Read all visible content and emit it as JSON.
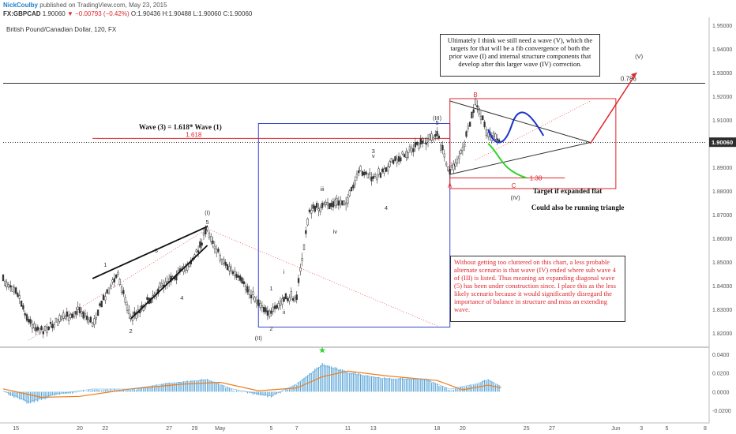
{
  "header": {
    "author": "NickCoulby",
    "published": "published on TradingView.com, May 23, 2015",
    "symbol": "FX:GBPCAD",
    "last": "1.90060",
    "change": "−0.00793 (−0.42%)",
    "ohlc": {
      "o": "O:1.90436",
      "h": "H:1.90488",
      "l": "L:1.90060",
      "c": "C:1.90060"
    }
  },
  "colors": {
    "up": "#333333",
    "down": "#333333",
    "accent": "#1e7fcb",
    "red": "#e0252b",
    "macd_hist": "#5aa5d8",
    "macd_signal": "#f07d1a",
    "macd_line": "#5aa5d8",
    "blue_box": "#3a45d6",
    "price_box_bg": "#2d2d2d",
    "projection_blue": "#1d36c9",
    "projection_green": "#2fd42f"
  },
  "chart_data": [
    {
      "type": "candlestick",
      "title": "British Pound/Canadian Dollar, 120, FX",
      "ylim": [
        1.815,
        1.952
      ],
      "yticks": [
        "1.95000",
        "1.94000",
        "1.93000",
        "1.92000",
        "1.91000",
        "1.90000",
        "1.89000",
        "1.88000",
        "1.87000",
        "1.86000",
        "1.85000",
        "1.84000",
        "1.83000",
        "1.82000"
      ],
      "xticks": [
        "15",
        "20",
        "22",
        "27",
        "29",
        "May",
        "5",
        "7",
        "11",
        "13",
        "18",
        "20",
        "25",
        "27",
        "Jun",
        "3",
        "5",
        "8"
      ],
      "xlim": [
        "2015-04-14",
        "2015-06-08"
      ],
      "last_price_label": "1.90060",
      "path": [
        [
          "2015-04-14",
          1.842
        ],
        [
          "2015-04-15",
          1.839
        ],
        [
          "2015-04-16",
          1.825
        ],
        [
          "2015-04-17",
          1.821
        ],
        [
          "2015-04-20",
          1.83
        ],
        [
          "2015-04-21",
          1.824
        ],
        [
          "2015-04-22",
          1.836
        ],
        [
          "2015-04-23",
          1.845
        ],
        [
          "2015-04-24",
          1.826
        ],
        [
          "2015-04-27",
          1.843
        ],
        [
          "2015-04-28",
          1.846
        ],
        [
          "2015-04-29",
          1.852
        ],
        [
          "2015-04-30",
          1.864
        ],
        [
          "2015-05-01",
          1.852
        ],
        [
          "2015-05-04",
          1.833
        ],
        [
          "2015-05-05",
          1.828
        ],
        [
          "2015-05-06",
          1.834
        ],
        [
          "2015-05-07",
          1.836
        ],
        [
          "2015-05-08",
          1.872
        ],
        [
          "2015-05-11",
          1.876
        ],
        [
          "2015-05-12",
          1.889
        ],
        [
          "2015-05-13",
          1.885
        ],
        [
          "2015-05-14",
          1.89
        ],
        [
          "2015-05-15",
          1.894
        ],
        [
          "2015-05-18",
          1.904
        ],
        [
          "2015-05-19",
          1.888
        ],
        [
          "2015-05-20",
          1.897
        ],
        [
          "2015-05-21",
          1.917
        ],
        [
          "2015-05-22",
          1.904
        ],
        [
          "2015-05-23",
          1.9006
        ]
      ],
      "wave_labels": [
        {
          "text": "1",
          "date": "2015-04-22",
          "y": 1.848
        },
        {
          "text": "3",
          "date": "2015-04-26",
          "y": 1.854
        },
        {
          "text": "2",
          "date": "2015-04-24",
          "y": 1.82
        },
        {
          "text": "4",
          "date": "2015-04-28",
          "y": 1.834
        },
        {
          "text": "(I)",
          "date": "2015-04-30",
          "y": 1.87
        },
        {
          "text": "5",
          "date": "2015-04-30",
          "y": 1.866
        },
        {
          "text": "(II)",
          "date": "2015-05-04",
          "y": 1.817
        },
        {
          "text": "1",
          "date": "2015-05-05",
          "y": 1.838
        },
        {
          "text": "i",
          "date": "2015-05-06",
          "y": 1.845
        },
        {
          "text": "ii",
          "date": "2015-05-06",
          "y": 1.828
        },
        {
          "text": "2",
          "date": "2015-05-05",
          "y": 1.821
        },
        {
          "text": "iii",
          "date": "2015-05-09",
          "y": 1.88
        },
        {
          "text": "iv",
          "date": "2015-05-10",
          "y": 1.862
        },
        {
          "text": "3",
          "date": "2015-05-13",
          "y": 1.896
        },
        {
          "text": "v",
          "date": "2015-05-13",
          "y": 1.894
        },
        {
          "text": "4",
          "date": "2015-05-14",
          "y": 1.872
        },
        {
          "text": "(III)",
          "date": "2015-05-18",
          "y": 1.91
        },
        {
          "text": "5",
          "date": "2015-05-18",
          "y": 1.908
        }
      ],
      "triangle_labels": {
        "A": "A",
        "B": "B",
        "C": "C",
        "IV": "(IV)",
        "V": "(V)"
      },
      "fib_labels": {
        "upper": "0.786",
        "mid": "1.618",
        "low": "1.38"
      },
      "annotations": {
        "wave3": "Wave (3) = 1.618* Wave (1)",
        "expanded_flat_1": "Target if expanded flat",
        "expanded_flat_2": "Could also be running triangle",
        "note": "Ultimately I think we still need a wave (V), which the targets for that will be a fib convergence of both the prior wave (I) and internal structure components that develop after this larger wave (IV) correction.",
        "alternate": "Without getting too cluttered on this chart, a less probable alternate scenario is that wave (IV) ended where sub wave 4 of (III) is listed. Thus meaning an expanding diagonal wave (5) has been under construction since. I place this as the less likely scenario because it would significantly disregard the importance of balance in structure and miss an extending wave."
      }
    },
    {
      "type": "macd",
      "ylim": [
        -0.03,
        0.045
      ],
      "yticks": [
        "0.0400",
        "0.0200",
        "0.0000",
        "-0.0200"
      ],
      "histogram_path": [
        [
          "2015-04-14",
          0.0
        ],
        [
          "2015-04-16",
          -0.013
        ],
        [
          "2015-04-18",
          -0.004
        ],
        [
          "2015-04-21",
          0.002
        ],
        [
          "2015-04-24",
          0.002
        ],
        [
          "2015-04-27",
          0.009
        ],
        [
          "2015-04-30",
          0.013
        ],
        [
          "2015-05-02",
          0.002
        ],
        [
          "2015-05-05",
          -0.006
        ],
        [
          "2015-05-07",
          0.008
        ],
        [
          "2015-05-09",
          0.03
        ],
        [
          "2015-05-11",
          0.021
        ],
        [
          "2015-05-14",
          0.014
        ],
        [
          "2015-05-17",
          0.014
        ],
        [
          "2015-05-19",
          0.002
        ],
        [
          "2015-05-21",
          0.008
        ],
        [
          "2015-05-22",
          0.013
        ],
        [
          "2015-05-23",
          0.005
        ]
      ],
      "signal_path": [
        [
          "2015-04-14",
          0.003
        ],
        [
          "2015-04-17",
          -0.006
        ],
        [
          "2015-04-20",
          -0.005
        ],
        [
          "2015-04-24",
          0.003
        ],
        [
          "2015-04-28",
          0.008
        ],
        [
          "2015-05-01",
          0.01
        ],
        [
          "2015-05-04",
          0.001
        ],
        [
          "2015-05-07",
          0.004
        ],
        [
          "2015-05-09",
          0.016
        ],
        [
          "2015-05-11",
          0.022
        ],
        [
          "2015-05-14",
          0.017
        ],
        [
          "2015-05-18",
          0.012
        ],
        [
          "2015-05-20",
          0.002
        ],
        [
          "2015-05-22",
          0.007
        ],
        [
          "2015-05-23",
          0.004
        ]
      ],
      "star_marker": "★"
    }
  ]
}
